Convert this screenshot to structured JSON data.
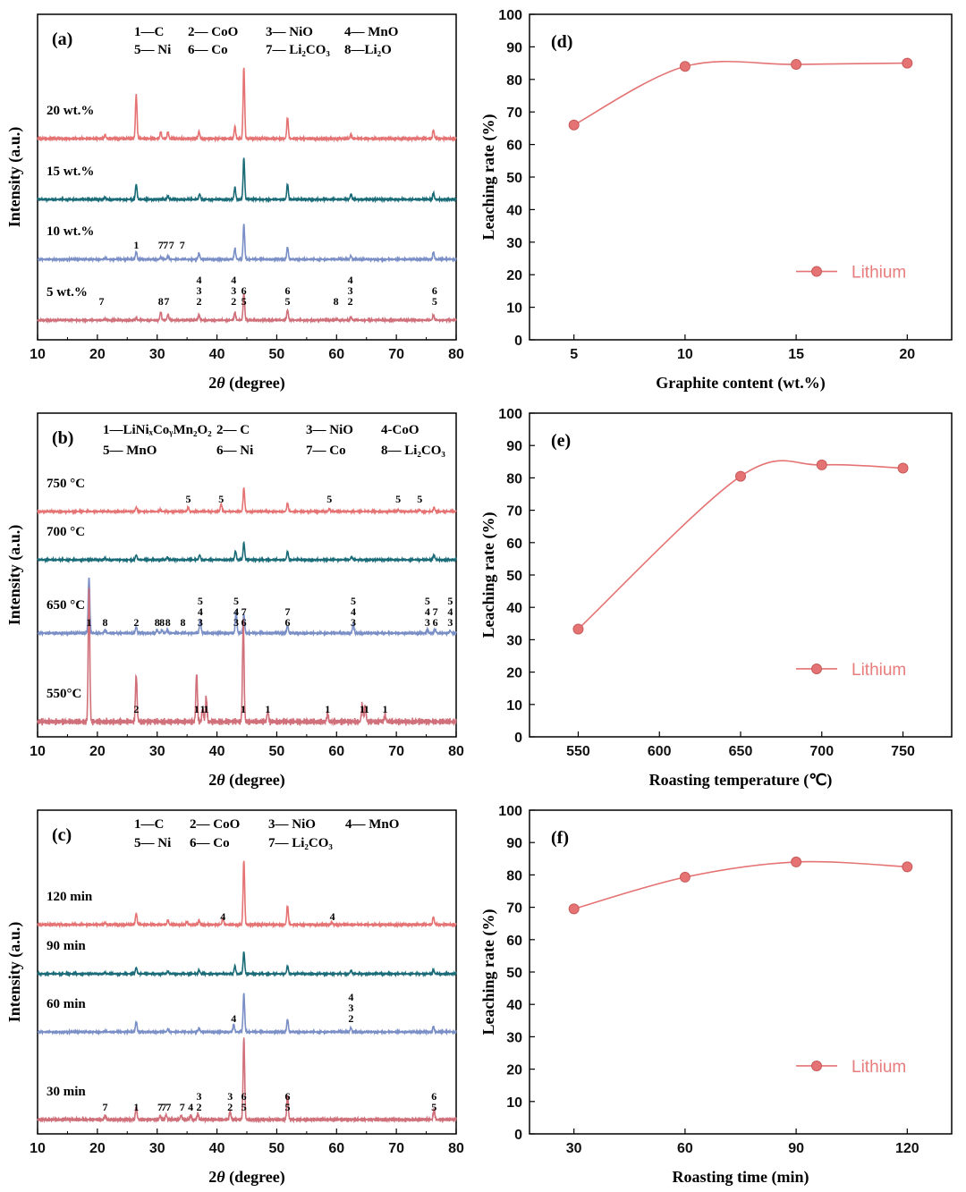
{
  "chart_data": [
    {
      "panel": "(a)",
      "type": "line",
      "xlabel_prefix": "2",
      "xlabel_italic": "θ",
      "xlabel_suffix": " (degree)",
      "ylabel": "Intensity (a.u.)",
      "xlim": [
        10,
        80
      ],
      "xticks": [
        "10",
        "20",
        "30",
        "40",
        "50",
        "60",
        "70",
        "80"
      ],
      "legend": [
        [
          "1—C",
          "2— CoO",
          "3— NiO",
          "4— MnO"
        ],
        [
          "5— Ni",
          "6— Co",
          "7— Li₂CO₃",
          "8—Li₂O"
        ]
      ],
      "series": [
        {
          "name": "20 wt.%",
          "color": "#e57373",
          "peaks": [
            [
              21.3,
              0.05
            ],
            [
              26.5,
              0.62
            ],
            [
              30.6,
              0.09
            ],
            [
              31.8,
              0.09
            ],
            [
              37.0,
              0.1
            ],
            [
              43.0,
              0.17
            ],
            [
              44.5,
              1.0
            ],
            [
              51.8,
              0.3
            ],
            [
              62.4,
              0.06
            ],
            [
              76.2,
              0.12
            ]
          ]
        },
        {
          "name": "15 wt.%",
          "color": "#1a6b78",
          "peaks": [
            [
              21.3,
              0.04
            ],
            [
              26.5,
              0.28
            ],
            [
              31.8,
              0.06
            ],
            [
              37.1,
              0.1
            ],
            [
              43.0,
              0.22
            ],
            [
              44.5,
              0.75
            ],
            [
              51.8,
              0.28
            ],
            [
              62.4,
              0.09
            ],
            [
              76.2,
              0.12
            ]
          ]
        },
        {
          "name": "10 wt.%",
          "color": "#7b8fc7",
          "peaks": [
            [
              21.3,
              0.03
            ],
            [
              26.5,
              0.15
            ],
            [
              30.6,
              0.04
            ],
            [
              31.8,
              0.07
            ],
            [
              37.0,
              0.12
            ],
            [
              43.0,
              0.21
            ],
            [
              44.5,
              0.68
            ],
            [
              51.8,
              0.24
            ],
            [
              62.4,
              0.07
            ],
            [
              76.2,
              0.14
            ]
          ]
        },
        {
          "name": "5 wt.%",
          "color": "#d0707a",
          "peaks": [
            [
              21.3,
              0.02
            ],
            [
              26.5,
              0.03
            ],
            [
              30.6,
              0.16
            ],
            [
              31.8,
              0.1
            ],
            [
              37.0,
              0.1
            ],
            [
              43.0,
              0.15
            ],
            [
              44.5,
              0.52
            ],
            [
              51.8,
              0.2
            ],
            [
              60.0,
              0.03
            ],
            [
              62.4,
              0.06
            ],
            [
              76.2,
              0.1
            ]
          ]
        }
      ],
      "peak_labels": [
        [
          [
            26.5,
            "1"
          ],
          [
            30.6,
            "7"
          ],
          [
            31.4,
            "7"
          ],
          [
            32.4,
            "7"
          ],
          [
            34.2,
            "7"
          ]
        ],
        [
          [
            20.7,
            "7"
          ],
          [
            30.6,
            "8"
          ],
          [
            31.6,
            "7"
          ],
          [
            37.0,
            "4\n3\n2"
          ],
          [
            42.8,
            "4\n3\n2"
          ],
          [
            44.5,
            "6\n5"
          ],
          [
            51.8,
            "6\n5"
          ],
          [
            59.9,
            "8"
          ],
          [
            62.3,
            "4\n3\n2"
          ],
          [
            76.4,
            "6\n5"
          ]
        ]
      ]
    },
    {
      "panel": "(b)",
      "type": "line",
      "xlabel_prefix": "2",
      "xlabel_italic": "θ",
      "xlabel_suffix": " (degree)",
      "ylabel": "Intensity (a.u.)",
      "xlim": [
        10,
        80
      ],
      "xticks": [
        "10",
        "20",
        "30",
        "40",
        "50",
        "60",
        "70",
        "80"
      ],
      "legend": [
        [
          "1—LiNiₓCoᵧMn₂O₂",
          "2— C",
          "3— NiO",
          "4-CoO"
        ],
        [
          "5— MnO",
          "6— Ni",
          "7— Co",
          "8— Li₂CO₃"
        ]
      ],
      "series": [
        {
          "name": "750 °C",
          "color": "#e57373",
          "peaks": [
            [
              26.5,
              0.1
            ],
            [
              30.5,
              0.04
            ],
            [
              35.2,
              0.1
            ],
            [
              40.7,
              0.18
            ],
            [
              44.5,
              0.55
            ],
            [
              51.8,
              0.2
            ],
            [
              58.8,
              0.07
            ],
            [
              70.3,
              0.04
            ],
            [
              73.9,
              0.04
            ],
            [
              76.3,
              0.1
            ]
          ]
        },
        {
          "name": "700 °C",
          "color": "#1a6b78",
          "peaks": [
            [
              21.3,
              0.03
            ],
            [
              26.5,
              0.1
            ],
            [
              31.7,
              0.05
            ],
            [
              37.1,
              0.1
            ],
            [
              43.1,
              0.18
            ],
            [
              44.5,
              0.35
            ],
            [
              51.8,
              0.17
            ],
            [
              62.5,
              0.06
            ],
            [
              76.3,
              0.1
            ]
          ]
        },
        {
          "name": "650 °C",
          "color": "#7b8fc7",
          "peaks": [
            [
              18.6,
              0.9
            ],
            [
              21.3,
              0.05
            ],
            [
              26.5,
              0.1
            ],
            [
              30.0,
              0.05
            ],
            [
              30.8,
              0.05
            ],
            [
              31.7,
              0.06
            ],
            [
              37.2,
              0.22
            ],
            [
              43.2,
              0.36
            ],
            [
              44.5,
              0.3
            ],
            [
              51.8,
              0.12
            ],
            [
              62.8,
              0.15
            ],
            [
              75.2,
              0.06
            ],
            [
              76.5,
              0.06
            ],
            [
              79.0,
              0.04
            ]
          ]
        },
        {
          "name": "550°C",
          "color": "#d0707a",
          "peaks": [
            [
              18.6,
              1.0
            ],
            [
              26.5,
              0.35
            ],
            [
              36.6,
              0.36
            ],
            [
              37.6,
              0.1
            ],
            [
              38.2,
              0.18
            ],
            [
              44.4,
              0.75
            ],
            [
              48.5,
              0.08
            ],
            [
              58.5,
              0.06
            ],
            [
              64.3,
              0.13
            ],
            [
              64.8,
              0.12
            ],
            [
              68.1,
              0.05
            ]
          ]
        }
      ],
      "peak_labels": [
        [
          [
            35.2,
            "5"
          ],
          [
            40.7,
            "5"
          ],
          [
            58.8,
            "5"
          ],
          [
            70.3,
            "5"
          ],
          [
            73.9,
            "5"
          ]
        ],
        [
          [
            18.6,
            "1"
          ],
          [
            21.3,
            "8"
          ],
          [
            26.5,
            "2"
          ],
          [
            30.0,
            "8"
          ],
          [
            30.8,
            "8"
          ],
          [
            31.8,
            "8"
          ],
          [
            34.3,
            "8"
          ],
          [
            37.2,
            "5\n4\n3"
          ],
          [
            43.2,
            "5\n4\n3"
          ],
          [
            44.5,
            "7\n6"
          ],
          [
            51.8,
            "7\n6"
          ],
          [
            62.8,
            "5\n4\n3"
          ],
          [
            75.2,
            "5\n4\n3"
          ],
          [
            76.5,
            "7\n6"
          ],
          [
            79.0,
            "5\n4\n3"
          ]
        ],
        [
          [
            26.5,
            "2"
          ],
          [
            36.6,
            "1"
          ],
          [
            37.6,
            "1"
          ],
          [
            38.2,
            "1"
          ],
          [
            44.4,
            "1"
          ],
          [
            48.5,
            "1"
          ],
          [
            58.5,
            "1"
          ],
          [
            64.3,
            "1"
          ],
          [
            65.0,
            "1"
          ],
          [
            68.1,
            "1"
          ]
        ]
      ]
    },
    {
      "panel": "(c)",
      "type": "line",
      "xlabel_prefix": "2",
      "xlabel_italic": "θ",
      "xlabel_suffix": " (degree)",
      "ylabel": "Intensity (a.u.)",
      "xlim": [
        10,
        80
      ],
      "xticks": [
        "10",
        "20",
        "30",
        "40",
        "50",
        "60",
        "70",
        "80"
      ],
      "legend": [
        [
          "1—C",
          "2— CoO",
          "3— NiO",
          "4— MnO"
        ],
        [
          "5— Ni",
          "6— Co",
          "7— Li₂CO₃"
        ]
      ],
      "series": [
        {
          "name": "120 min",
          "color": "#e57373",
          "peaks": [
            [
              21.3,
              0.03
            ],
            [
              26.5,
              0.18
            ],
            [
              31.8,
              0.07
            ],
            [
              35.0,
              0.05
            ],
            [
              37.0,
              0.07
            ],
            [
              41.0,
              0.1
            ],
            [
              44.5,
              1.0
            ],
            [
              51.8,
              0.3
            ],
            [
              59.2,
              0.04
            ],
            [
              76.2,
              0.12
            ]
          ]
        },
        {
          "name": "90 min",
          "color": "#1a6b78",
          "peaks": [
            [
              21.3,
              0.03
            ],
            [
              26.5,
              0.16
            ],
            [
              31.8,
              0.06
            ],
            [
              37.0,
              0.1
            ],
            [
              43.0,
              0.2
            ],
            [
              44.5,
              0.55
            ],
            [
              51.8,
              0.2
            ],
            [
              62.4,
              0.08
            ],
            [
              76.2,
              0.1
            ]
          ]
        },
        {
          "name": "60 min",
          "color": "#7b8fc7",
          "peaks": [
            [
              21.3,
              0.02
            ],
            [
              26.5,
              0.2
            ],
            [
              31.8,
              0.05
            ],
            [
              37.0,
              0.07
            ],
            [
              42.8,
              0.14
            ],
            [
              44.5,
              0.72
            ],
            [
              51.8,
              0.24
            ],
            [
              62.4,
              0.08
            ],
            [
              76.2,
              0.1
            ]
          ]
        },
        {
          "name": "30 min",
          "color": "#d0707a",
          "peaks": [
            [
              21.3,
              0.05
            ],
            [
              26.5,
              0.15
            ],
            [
              30.5,
              0.05
            ],
            [
              31.5,
              0.06
            ],
            [
              34.0,
              0.05
            ],
            [
              35.6,
              0.05
            ],
            [
              36.8,
              0.07
            ],
            [
              42.2,
              0.1
            ],
            [
              44.5,
              1.0
            ],
            [
              51.8,
              0.3
            ],
            [
              76.3,
              0.12
            ]
          ]
        }
      ],
      "peak_labels": [
        [
          [
            41.0,
            "4"
          ],
          [
            59.3,
            "4"
          ]
        ],
        [
          [
            42.8,
            "4"
          ],
          [
            62.4,
            "4\n3\n2"
          ]
        ],
        [
          [
            21.3,
            "7"
          ],
          [
            26.5,
            "1"
          ],
          [
            30.5,
            "7"
          ],
          [
            31.1,
            "7"
          ],
          [
            31.9,
            "7"
          ],
          [
            34.2,
            "7"
          ],
          [
            35.6,
            "4"
          ],
          [
            37.0,
            "3\n2"
          ],
          [
            42.2,
            "3\n2"
          ],
          [
            44.5,
            "6\n5"
          ],
          [
            51.8,
            "6\n5"
          ],
          [
            76.3,
            "6\n5"
          ]
        ]
      ]
    },
    {
      "panel": "(d)",
      "type": "line",
      "xlabel": "Graphite content (wt.%)",
      "ylabel": "Leaching rate (%)",
      "xlim": [
        3,
        22
      ],
      "ylim": [
        0,
        100
      ],
      "xticks": [
        "5",
        "10",
        "15",
        "20"
      ],
      "yticks": [
        "0",
        "10",
        "20",
        "30",
        "40",
        "50",
        "60",
        "70",
        "80",
        "90",
        "100"
      ],
      "x": [
        5,
        10,
        15,
        20
      ],
      "series": [
        {
          "name": "Lithium",
          "color": "#e57373",
          "values": [
            66.0,
            84.0,
            84.6,
            85.0
          ]
        }
      ]
    },
    {
      "panel": "(e)",
      "type": "line",
      "xlabel": "Roasting temperature (℃)",
      "ylabel": "Leaching rate (%)",
      "xlim": [
        520,
        780
      ],
      "ylim": [
        0,
        100
      ],
      "xticks": [
        "550",
        "600",
        "650",
        "700",
        "750"
      ],
      "yticks": [
        "0",
        "10",
        "20",
        "30",
        "40",
        "50",
        "60",
        "70",
        "80",
        "90",
        "100"
      ],
      "x": [
        550,
        650,
        700,
        750
      ],
      "series": [
        {
          "name": "Lithium",
          "color": "#e57373",
          "values": [
            33.3,
            80.5,
            84.0,
            83.0
          ]
        }
      ]
    },
    {
      "panel": "(f)",
      "type": "line",
      "xlabel": "Roasting time (min)",
      "ylabel": "Leaching rate (%)",
      "xlim": [
        18,
        132
      ],
      "ylim": [
        0,
        100
      ],
      "xticks": [
        "30",
        "60",
        "90",
        "120"
      ],
      "yticks": [
        "0",
        "10",
        "20",
        "30",
        "40",
        "50",
        "60",
        "70",
        "80",
        "90",
        "100"
      ],
      "x": [
        30,
        60,
        90,
        120
      ],
      "series": [
        {
          "name": "Lithium",
          "color": "#e57373",
          "values": [
            69.5,
            79.3,
            84.0,
            82.5
          ]
        }
      ]
    }
  ]
}
